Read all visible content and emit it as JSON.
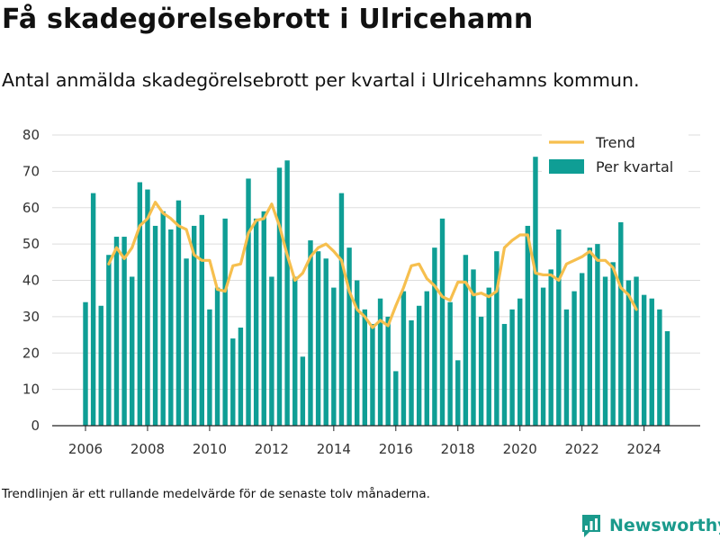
{
  "title": "Få skadegörelsebrott i Ulricehamn",
  "subtitle": "Antal anmälda skadegörelsebrott per kvartal i Ulricehamns kommun.",
  "footnote": "Trendlinjen är ett rullande medelvärde för de senaste tolv månaderna.",
  "brand": {
    "name": "Newsworthy",
    "color": "#1a9a8c"
  },
  "colors": {
    "bar": "#0f9e95",
    "trend": "#f6bf4e",
    "grid": "#dddddd",
    "axis": "#222222"
  },
  "chart_data": {
    "type": "bar",
    "x_unit": "quarter",
    "x_start": "2006 Q1",
    "x_ticks": [
      "2006",
      "2008",
      "2010",
      "2012",
      "2014",
      "2016",
      "2018",
      "2020",
      "2022",
      "2024"
    ],
    "y_ticks": [
      "0",
      "10",
      "20",
      "30",
      "40",
      "50",
      "60",
      "70",
      "80"
    ],
    "ylim": [
      0,
      80
    ],
    "grid": true,
    "legend_position": "top-right",
    "series": [
      {
        "name": "Per kvartal",
        "type": "bar",
        "values": [
          34,
          64,
          33,
          47,
          52,
          52,
          41,
          67,
          65,
          55,
          59,
          54,
          62,
          46,
          55,
          58,
          32,
          38,
          57,
          24,
          27,
          68,
          57,
          59,
          41,
          71,
          73,
          41,
          19,
          51,
          48,
          46,
          38,
          64,
          49,
          40,
          32,
          28,
          35,
          30,
          15,
          37,
          29,
          33,
          37,
          49,
          57,
          34,
          18,
          47,
          43,
          30,
          38,
          48,
          28,
          32,
          35,
          55,
          74,
          38,
          43,
          54,
          32,
          37,
          42,
          49,
          50,
          41,
          45,
          56,
          40,
          41,
          36,
          35,
          32,
          26
        ]
      },
      {
        "name": "Trend",
        "type": "line",
        "start_index": 3,
        "values": [
          44.5,
          49,
          46,
          49,
          55,
          57,
          61.5,
          58.5,
          57,
          55,
          54,
          47,
          45.5,
          45.5,
          37.5,
          37,
          44,
          44.5,
          53,
          56.5,
          57,
          61,
          55,
          47,
          40,
          42,
          46.5,
          49,
          50,
          48,
          45.5,
          37,
          32,
          30,
          27,
          29,
          27.5,
          33,
          38,
          44,
          44.5,
          40.5,
          38.5,
          35.5,
          34.5,
          39.5,
          39.5,
          36,
          36.5,
          35.5,
          37,
          49,
          51,
          52.5,
          52.5,
          42,
          41.5,
          41.5,
          40,
          44.5,
          45.5,
          46.5,
          48,
          45.5,
          45.5,
          43.5,
          38,
          36,
          32
        ]
      }
    ]
  }
}
